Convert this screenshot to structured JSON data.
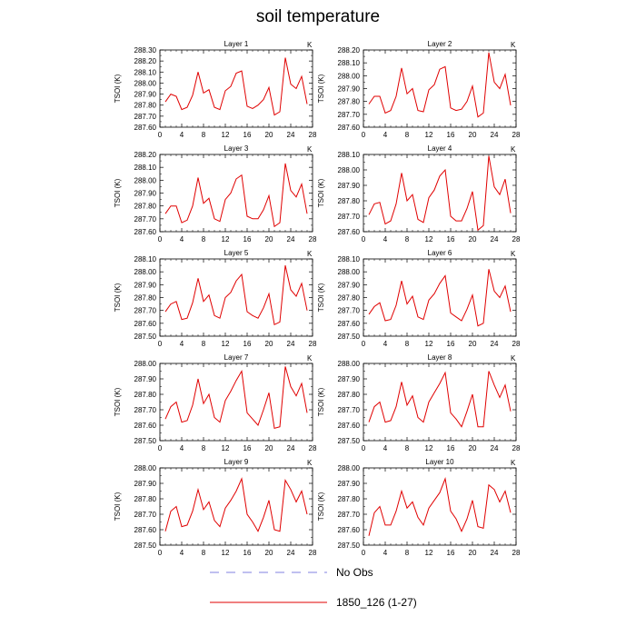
{
  "title": "soil temperature",
  "legend": [
    {
      "label": "No Obs",
      "color": "#8080e0",
      "dash": true
    },
    {
      "label": "1850_126 (1-27)",
      "color": "#e00000",
      "dash": false
    }
  ],
  "chart_data": [
    {
      "type": "line",
      "title": "Layer 1",
      "ylabel": "TSOI  (K)",
      "unit": "K",
      "xlim": [
        0,
        28
      ],
      "xticks": [
        0,
        4,
        8,
        12,
        16,
        20,
        24,
        28
      ],
      "ylim": [
        287.6,
        288.3
      ],
      "yticks": [
        "287.60",
        "287.70",
        "287.80",
        "287.90",
        "288.00",
        "288.10",
        "288.20",
        "288.30"
      ],
      "series": [
        {
          "x": [
            1,
            2,
            3,
            4,
            5,
            6,
            7,
            8,
            9,
            10,
            11,
            12,
            13,
            14,
            15,
            16,
            17,
            18,
            19,
            20,
            21,
            22,
            23,
            24,
            25,
            26,
            27
          ],
          "values": [
            287.83,
            287.9,
            287.88,
            287.76,
            287.78,
            287.89,
            288.1,
            287.91,
            287.94,
            287.78,
            287.76,
            287.93,
            287.97,
            288.09,
            288.11,
            287.79,
            287.77,
            287.8,
            287.85,
            287.96,
            287.71,
            287.74,
            288.23,
            287.99,
            287.95,
            288.06,
            287.81
          ]
        }
      ]
    },
    {
      "type": "line",
      "title": "Layer 2",
      "ylabel": "TSOI  (K)",
      "unit": "K",
      "xlim": [
        0,
        28
      ],
      "xticks": [
        0,
        4,
        8,
        12,
        16,
        20,
        24,
        28
      ],
      "ylim": [
        287.6,
        288.2
      ],
      "yticks": [
        "287.60",
        "287.70",
        "287.80",
        "287.90",
        "288.00",
        "288.10",
        "288.20"
      ],
      "series": [
        {
          "x": [
            1,
            2,
            3,
            4,
            5,
            6,
            7,
            8,
            9,
            10,
            11,
            12,
            13,
            14,
            15,
            16,
            17,
            18,
            19,
            20,
            21,
            22,
            23,
            24,
            25,
            26,
            27
          ],
          "values": [
            287.78,
            287.84,
            287.84,
            287.71,
            287.73,
            287.84,
            288.06,
            287.86,
            287.9,
            287.73,
            287.72,
            287.89,
            287.93,
            288.05,
            288.07,
            287.75,
            287.73,
            287.74,
            287.8,
            287.92,
            287.68,
            287.71,
            288.18,
            287.95,
            287.9,
            288.01,
            287.77
          ]
        }
      ]
    },
    {
      "type": "line",
      "title": "Layer 3",
      "ylabel": "TSOI  (K)",
      "unit": "K",
      "xlim": [
        0,
        28
      ],
      "xticks": [
        0,
        4,
        8,
        12,
        16,
        20,
        24,
        28
      ],
      "ylim": [
        287.6,
        288.2
      ],
      "yticks": [
        "287.60",
        "287.70",
        "287.80",
        "287.90",
        "288.00",
        "288.10",
        "288.20"
      ],
      "series": [
        {
          "x": [
            1,
            2,
            3,
            4,
            5,
            6,
            7,
            8,
            9,
            10,
            11,
            12,
            13,
            14,
            15,
            16,
            17,
            18,
            19,
            20,
            21,
            22,
            23,
            24,
            25,
            26,
            27
          ],
          "values": [
            287.74,
            287.8,
            287.8,
            287.67,
            287.69,
            287.8,
            288.02,
            287.82,
            287.86,
            287.7,
            287.68,
            287.85,
            287.9,
            288.01,
            288.04,
            287.72,
            287.7,
            287.7,
            287.77,
            287.88,
            287.64,
            287.67,
            288.13,
            287.92,
            287.87,
            287.97,
            287.74
          ]
        }
      ]
    },
    {
      "type": "line",
      "title": "Layer 4",
      "ylabel": "TSOI  (K)",
      "unit": "K",
      "xlim": [
        0,
        28
      ],
      "xticks": [
        0,
        4,
        8,
        12,
        16,
        20,
        24,
        28
      ],
      "ylim": [
        287.6,
        288.1
      ],
      "yticks": [
        "287.60",
        "287.70",
        "287.80",
        "287.90",
        "288.00",
        "288.10"
      ],
      "series": [
        {
          "x": [
            1,
            2,
            3,
            4,
            5,
            6,
            7,
            8,
            9,
            10,
            11,
            12,
            13,
            14,
            15,
            16,
            17,
            18,
            19,
            20,
            21,
            22,
            23,
            24,
            25,
            26,
            27
          ],
          "values": [
            287.71,
            287.78,
            287.79,
            287.65,
            287.67,
            287.78,
            287.98,
            287.8,
            287.84,
            287.68,
            287.66,
            287.82,
            287.87,
            287.96,
            288.0,
            287.7,
            287.67,
            287.67,
            287.75,
            287.86,
            287.61,
            287.64,
            288.09,
            287.89,
            287.84,
            287.94,
            287.72
          ]
        }
      ]
    },
    {
      "type": "line",
      "title": "Layer 5",
      "ylabel": "TSOI  (K)",
      "unit": "K",
      "xlim": [
        0,
        28
      ],
      "xticks": [
        0,
        4,
        8,
        12,
        16,
        20,
        24,
        28
      ],
      "ylim": [
        287.5,
        288.1
      ],
      "yticks": [
        "287.50",
        "287.60",
        "287.70",
        "287.80",
        "287.90",
        "288.00",
        "288.10"
      ],
      "series": [
        {
          "x": [
            1,
            2,
            3,
            4,
            5,
            6,
            7,
            8,
            9,
            10,
            11,
            12,
            13,
            14,
            15,
            16,
            17,
            18,
            19,
            20,
            21,
            22,
            23,
            24,
            25,
            26,
            27
          ],
          "values": [
            287.69,
            287.75,
            287.77,
            287.63,
            287.64,
            287.76,
            287.95,
            287.77,
            287.82,
            287.66,
            287.64,
            287.8,
            287.84,
            287.93,
            287.98,
            287.69,
            287.66,
            287.64,
            287.72,
            287.83,
            287.59,
            287.61,
            288.05,
            287.86,
            287.81,
            287.91,
            287.7
          ]
        }
      ]
    },
    {
      "type": "line",
      "title": "Layer 6",
      "ylabel": "TSOI  (K)",
      "unit": "K",
      "xlim": [
        0,
        28
      ],
      "xticks": [
        0,
        4,
        8,
        12,
        16,
        20,
        24,
        28
      ],
      "ylim": [
        287.5,
        288.1
      ],
      "yticks": [
        "287.50",
        "287.60",
        "287.70",
        "287.80",
        "287.90",
        "288.00",
        "288.10"
      ],
      "series": [
        {
          "x": [
            1,
            2,
            3,
            4,
            5,
            6,
            7,
            8,
            9,
            10,
            11,
            12,
            13,
            14,
            15,
            16,
            17,
            18,
            19,
            20,
            21,
            22,
            23,
            24,
            25,
            26,
            27
          ],
          "values": [
            287.67,
            287.73,
            287.76,
            287.62,
            287.63,
            287.74,
            287.93,
            287.75,
            287.81,
            287.65,
            287.63,
            287.78,
            287.83,
            287.91,
            287.97,
            287.68,
            287.65,
            287.62,
            287.71,
            287.82,
            287.58,
            287.6,
            288.02,
            287.85,
            287.8,
            287.89,
            287.69
          ]
        }
      ]
    },
    {
      "type": "line",
      "title": "Layer 7",
      "ylabel": "TSOI  (K)",
      "unit": "K",
      "xlim": [
        0,
        28
      ],
      "xticks": [
        0,
        4,
        8,
        12,
        16,
        20,
        24,
        28
      ],
      "ylim": [
        287.5,
        288.0
      ],
      "yticks": [
        "287.50",
        "287.60",
        "287.70",
        "287.80",
        "287.90",
        "288.00"
      ],
      "series": [
        {
          "x": [
            1,
            2,
            3,
            4,
            5,
            6,
            7,
            8,
            9,
            10,
            11,
            12,
            13,
            14,
            15,
            16,
            17,
            18,
            19,
            20,
            21,
            22,
            23,
            24,
            25,
            26,
            27
          ],
          "values": [
            287.64,
            287.72,
            287.75,
            287.62,
            287.63,
            287.73,
            287.9,
            287.74,
            287.8,
            287.65,
            287.62,
            287.76,
            287.82,
            287.89,
            287.95,
            287.68,
            287.64,
            287.6,
            287.7,
            287.81,
            287.58,
            287.59,
            287.98,
            287.85,
            287.79,
            287.87,
            287.68
          ]
        }
      ]
    },
    {
      "type": "line",
      "title": "Layer 8",
      "ylabel": "TSOI  (K)",
      "unit": "K",
      "xlim": [
        0,
        28
      ],
      "xticks": [
        0,
        4,
        8,
        12,
        16,
        20,
        24,
        28
      ],
      "ylim": [
        287.5,
        288.0
      ],
      "yticks": [
        "287.50",
        "287.60",
        "287.70",
        "287.80",
        "287.90",
        "288.00"
      ],
      "series": [
        {
          "x": [
            1,
            2,
            3,
            4,
            5,
            6,
            7,
            8,
            9,
            10,
            11,
            12,
            13,
            14,
            15,
            16,
            17,
            18,
            19,
            20,
            21,
            22,
            23,
            24,
            25,
            26,
            27
          ],
          "values": [
            287.62,
            287.72,
            287.75,
            287.62,
            287.63,
            287.72,
            287.88,
            287.73,
            287.79,
            287.65,
            287.62,
            287.75,
            287.81,
            287.87,
            287.94,
            287.68,
            287.64,
            287.59,
            287.69,
            287.8,
            287.59,
            287.59,
            287.95,
            287.86,
            287.78,
            287.86,
            287.69
          ]
        }
      ]
    },
    {
      "type": "line",
      "title": "Layer 9",
      "ylabel": "TSOI  (K)",
      "unit": "K",
      "xlim": [
        0,
        28
      ],
      "xticks": [
        0,
        4,
        8,
        12,
        16,
        20,
        24,
        28
      ],
      "ylim": [
        287.5,
        288.0
      ],
      "yticks": [
        "287.50",
        "287.60",
        "287.70",
        "287.80",
        "287.90",
        "288.00"
      ],
      "series": [
        {
          "x": [
            1,
            2,
            3,
            4,
            5,
            6,
            7,
            8,
            9,
            10,
            11,
            12,
            13,
            14,
            15,
            16,
            17,
            18,
            19,
            20,
            21,
            22,
            23,
            24,
            25,
            26,
            27
          ],
          "values": [
            287.59,
            287.72,
            287.75,
            287.62,
            287.63,
            287.72,
            287.86,
            287.73,
            287.78,
            287.66,
            287.62,
            287.74,
            287.79,
            287.85,
            287.93,
            287.7,
            287.65,
            287.59,
            287.68,
            287.79,
            287.6,
            287.59,
            287.92,
            287.86,
            287.78,
            287.85,
            287.7
          ]
        }
      ]
    },
    {
      "type": "line",
      "title": "Layer 10",
      "ylabel": "TSOI  (K)",
      "unit": "K",
      "xlim": [
        0,
        28
      ],
      "xticks": [
        0,
        4,
        8,
        12,
        16,
        20,
        24,
        28
      ],
      "ylim": [
        287.5,
        288.0
      ],
      "yticks": [
        "287.50",
        "287.60",
        "287.70",
        "287.80",
        "287.90",
        "288.00"
      ],
      "series": [
        {
          "x": [
            1,
            2,
            3,
            4,
            5,
            6,
            7,
            8,
            9,
            10,
            11,
            12,
            13,
            14,
            15,
            16,
            17,
            18,
            19,
            20,
            21,
            22,
            23,
            24,
            25,
            26,
            27
          ],
          "values": [
            287.56,
            287.71,
            287.75,
            287.63,
            287.63,
            287.72,
            287.85,
            287.74,
            287.78,
            287.68,
            287.63,
            287.74,
            287.79,
            287.84,
            287.93,
            287.72,
            287.67,
            287.59,
            287.67,
            287.79,
            287.62,
            287.61,
            287.89,
            287.86,
            287.78,
            287.85,
            287.71
          ]
        }
      ]
    }
  ]
}
